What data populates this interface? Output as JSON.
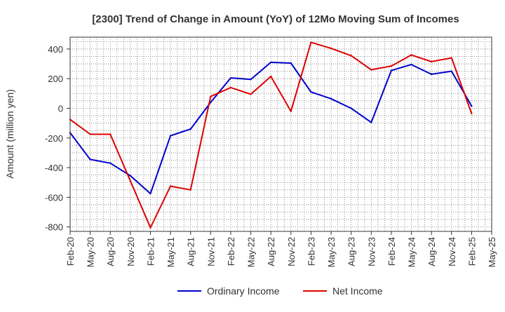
{
  "chart_data": {
    "type": "line",
    "title": "[2300]  Trend of Change in Amount (YoY) of 12Mo Moving Sum of Incomes",
    "ylabel": "Amount (million yen)",
    "xlabel": "",
    "ylim": [
      -830,
      480
    ],
    "yticks": [
      400,
      200,
      0,
      -200,
      -400,
      -600,
      -800
    ],
    "categories": [
      "Feb-20",
      "May-20",
      "Aug-20",
      "Nov-20",
      "Feb-21",
      "May-21",
      "Aug-21",
      "Nov-21",
      "Feb-22",
      "May-22",
      "Aug-22",
      "Nov-22",
      "Feb-23",
      "May-23",
      "Aug-23",
      "Nov-23",
      "Feb-24",
      "May-24",
      "Aug-24",
      "Nov-24",
      "Feb-25",
      "May-25"
    ],
    "grid": true,
    "legend_position": "bottom",
    "series": [
      {
        "name": "Ordinary Income",
        "color": "#0000cc",
        "values": [
          -165,
          -345,
          -370,
          -455,
          -575,
          -185,
          -140,
          40,
          205,
          195,
          310,
          305,
          110,
          65,
          0,
          -95,
          255,
          295,
          230,
          250,
          15,
          null
        ]
      },
      {
        "name": "Net Income",
        "color": "#dd0000",
        "values": [
          -75,
          -175,
          -175,
          -490,
          -805,
          -525,
          -550,
          80,
          140,
          95,
          215,
          -20,
          445,
          405,
          355,
          260,
          285,
          360,
          315,
          340,
          -35,
          null
        ]
      }
    ]
  }
}
